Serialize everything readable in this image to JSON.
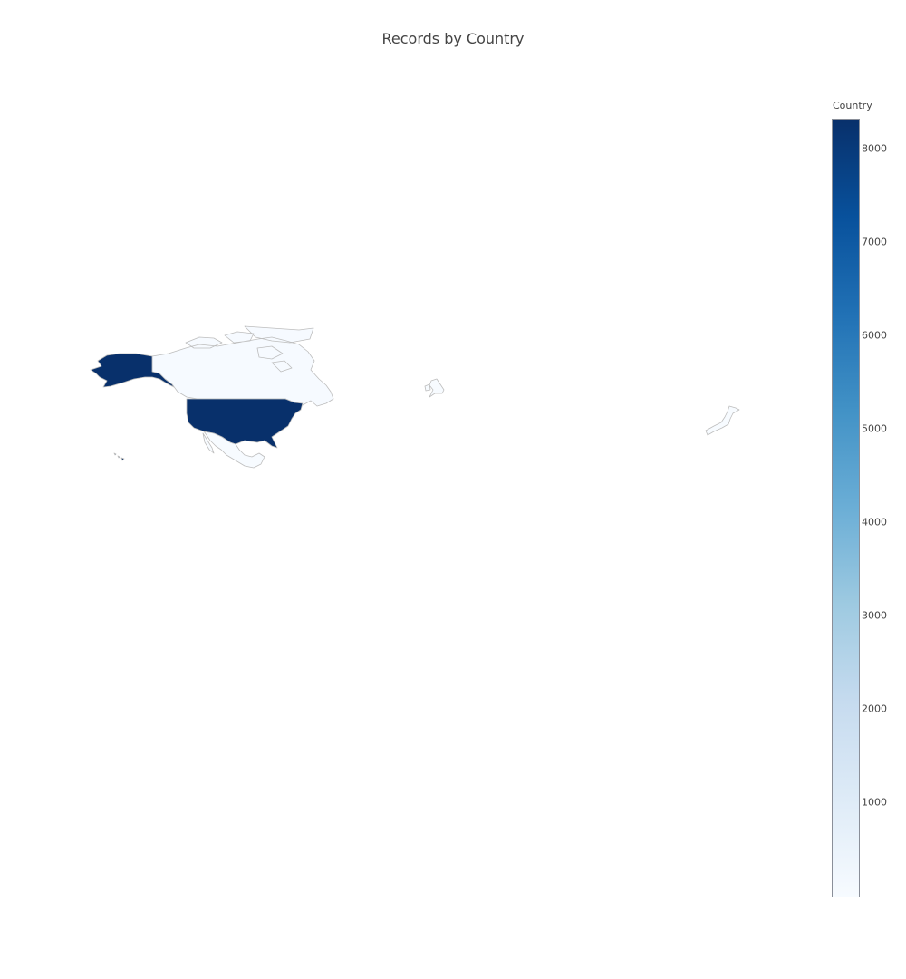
{
  "title": "Records by Country",
  "colorbar": {
    "title": "Country",
    "ticks": [
      1000,
      2000,
      3000,
      4000,
      5000,
      6000,
      7000,
      8000
    ],
    "range": [
      0,
      8300
    ],
    "colorscale": [
      "#f7fbff",
      "#deebf7",
      "#c6dbef",
      "#9ecae1",
      "#6baed6",
      "#4292c6",
      "#2171b5",
      "#08519c",
      "#08306b"
    ]
  },
  "chart_data": {
    "type": "choropleth",
    "title": "Records by Country",
    "colorbar_title": "Country",
    "locations": [
      {
        "country": "United States",
        "value": 8300
      },
      {
        "country": "Canada",
        "value": 50
      },
      {
        "country": "Mexico",
        "value": 20
      },
      {
        "country": "United Kingdom",
        "value": 20
      },
      {
        "country": "Japan",
        "value": 10
      }
    ]
  }
}
